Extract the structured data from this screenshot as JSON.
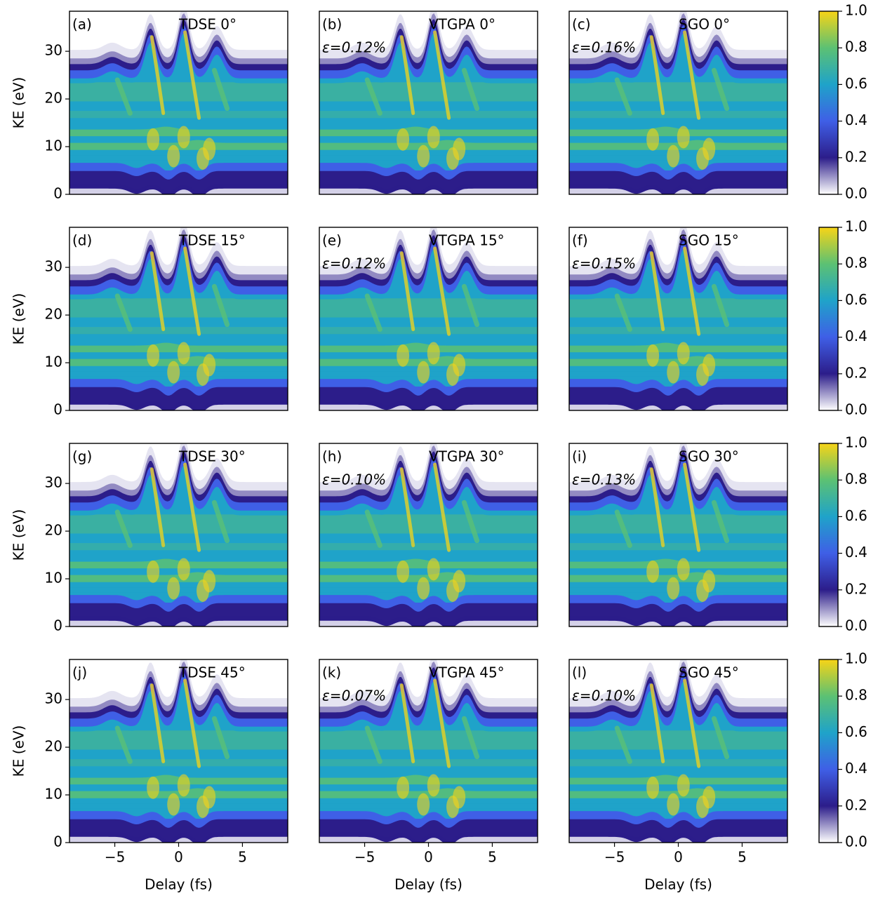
{
  "chart_data": [
    {
      "type": "heatmap",
      "label": "(a)",
      "title": "TDSE 0°",
      "xlim": [
        -8.55,
        8.55
      ],
      "ylim": [
        0,
        38.4
      ],
      "yticks": [
        0,
        10,
        20,
        30
      ],
      "ylabel": "KE (eV)"
    },
    {
      "type": "heatmap",
      "label": "(b)",
      "title": "VTGPA 0°",
      "annotation": "ε=0.12%",
      "xlim": [
        -8.55,
        8.55
      ],
      "ylim": [
        0,
        38.4
      ]
    },
    {
      "type": "heatmap",
      "label": "(c)",
      "title": "SGO 0°",
      "annotation": "ε=0.16%",
      "xlim": [
        -8.55,
        8.55
      ],
      "ylim": [
        0,
        38.4
      ]
    },
    {
      "type": "heatmap",
      "label": "(d)",
      "title": "TDSE 15°",
      "xlim": [
        -8.55,
        8.55
      ],
      "ylim": [
        0,
        38.4
      ],
      "yticks": [
        0,
        10,
        20,
        30
      ],
      "ylabel": "KE (eV)"
    },
    {
      "type": "heatmap",
      "label": "(e)",
      "title": "VTGPA 15°",
      "annotation": "ε=0.12%",
      "xlim": [
        -8.55,
        8.55
      ],
      "ylim": [
        0,
        38.4
      ]
    },
    {
      "type": "heatmap",
      "label": "(f)",
      "title": "SGO 15°",
      "annotation": "ε=0.15%",
      "xlim": [
        -8.55,
        8.55
      ],
      "ylim": [
        0,
        38.4
      ]
    },
    {
      "type": "heatmap",
      "label": "(g)",
      "title": "TDSE 30°",
      "xlim": [
        -8.55,
        8.55
      ],
      "ylim": [
        0,
        38.4
      ],
      "yticks": [
        0,
        10,
        20,
        30
      ],
      "ylabel": "KE (eV)"
    },
    {
      "type": "heatmap",
      "label": "(h)",
      "title": "VTGPA 30°",
      "annotation": "ε=0.10%",
      "xlim": [
        -8.55,
        8.55
      ],
      "ylim": [
        0,
        38.4
      ]
    },
    {
      "type": "heatmap",
      "label": "(i)",
      "title": "SGO 30°",
      "annotation": "ε=0.13%",
      "xlim": [
        -8.55,
        8.55
      ],
      "ylim": [
        0,
        38.4
      ]
    },
    {
      "type": "heatmap",
      "label": "(j)",
      "title": "TDSE 45°",
      "xlim": [
        -8.55,
        8.55
      ],
      "ylim": [
        0,
        38.4
      ],
      "yticks": [
        0,
        10,
        20,
        30
      ],
      "ylabel": "KE (eV)",
      "xticks": [
        {
          "value": -5,
          "label": "−5"
        },
        0,
        5
      ],
      "xlabel": "Delay (fs)"
    },
    {
      "type": "heatmap",
      "label": "(k)",
      "title": "VTGPA 45°",
      "annotation": "ε=0.07%",
      "xlim": [
        -8.55,
        8.55
      ],
      "ylim": [
        0,
        38.4
      ],
      "xticks": [
        {
          "value": -5,
          "label": "−5"
        },
        0,
        5
      ],
      "xlabel": "Delay (fs)"
    },
    {
      "type": "heatmap",
      "label": "(l)",
      "title": "SGO 45°",
      "annotation": "ε=0.10%",
      "xlim": [
        -8.55,
        8.55
      ],
      "ylim": [
        0,
        38.4
      ],
      "xticks": [
        {
          "value": -5,
          "label": "−5"
        },
        0,
        5
      ],
      "xlabel": "Delay (fs)"
    },
    {
      "type": "colorbar",
      "ylim": [
        0,
        1
      ],
      "yticks": [
        {
          "value": 0,
          "label": "0.0"
        },
        {
          "value": 0.2,
          "label": "0.2"
        },
        {
          "value": 0.4,
          "label": "0.4"
        },
        {
          "value": 0.6,
          "label": "0.6"
        },
        {
          "value": 0.8,
          "label": "0.8"
        },
        {
          "value": 1,
          "label": "1.0"
        }
      ],
      "colors": [
        "#ffffff",
        "#2c1d8a",
        "#3f5fe6",
        "#1fa3c9",
        "#5cc173",
        "#f7d417"
      ]
    },
    {
      "type": "colorbar",
      "ylim": [
        0,
        1
      ],
      "yticks": [
        {
          "value": 0,
          "label": "0.0"
        },
        {
          "value": 0.2,
          "label": "0.2"
        },
        {
          "value": 0.4,
          "label": "0.4"
        },
        {
          "value": 0.6,
          "label": "0.6"
        },
        {
          "value": 0.8,
          "label": "0.8"
        },
        {
          "value": 1,
          "label": "1.0"
        }
      ],
      "colors": [
        "#ffffff",
        "#2c1d8a",
        "#3f5fe6",
        "#1fa3c9",
        "#5cc173",
        "#f7d417"
      ]
    },
    {
      "type": "colorbar",
      "ylim": [
        0,
        1
      ],
      "yticks": [
        {
          "value": 0,
          "label": "0.0"
        },
        {
          "value": 0.2,
          "label": "0.2"
        },
        {
          "value": 0.4,
          "label": "0.4"
        },
        {
          "value": 0.6,
          "label": "0.6"
        },
        {
          "value": 0.8,
          "label": "0.8"
        },
        {
          "value": 1,
          "label": "1.0"
        }
      ],
      "colors": [
        "#ffffff",
        "#2c1d8a",
        "#3f5fe6",
        "#1fa3c9",
        "#5cc173",
        "#f7d417"
      ]
    },
    {
      "type": "colorbar",
      "ylim": [
        0,
        1
      ],
      "yticks": [
        {
          "value": 0,
          "label": "0.0"
        },
        {
          "value": 0.2,
          "label": "0.2"
        },
        {
          "value": 0.4,
          "label": "0.4"
        },
        {
          "value": 0.6,
          "label": "0.6"
        },
        {
          "value": 0.8,
          "label": "0.8"
        },
        {
          "value": 1,
          "label": "1.0"
        }
      ],
      "colors": [
        "#ffffff",
        "#2c1d8a",
        "#3f5fe6",
        "#1fa3c9",
        "#5cc173",
        "#f7d417"
      ]
    }
  ]
}
